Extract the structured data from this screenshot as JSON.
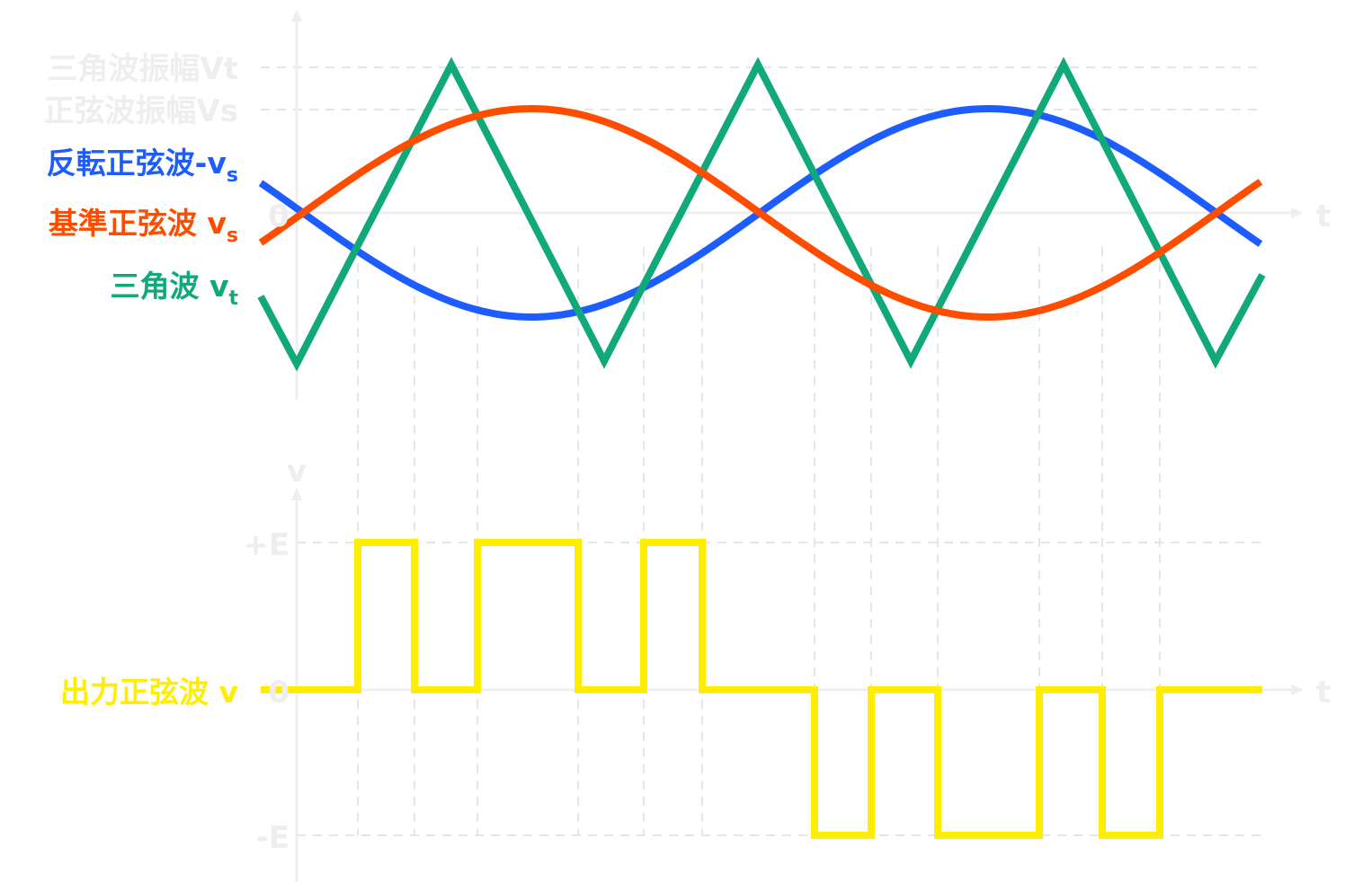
{
  "top_plot": {
    "level_labels": {
      "triangle_amplitude": "三角波振幅Vt",
      "sine_amplitude": "正弦波振幅Vs",
      "zero": "0"
    },
    "time_label": "t",
    "legend": {
      "inverted_sine": {
        "text": "反転正弦波-v",
        "sub": "s",
        "color": "#1d5cff"
      },
      "reference_sine": {
        "text": "基準正弦波 v",
        "sub": "s",
        "color": "#ff4d00"
      },
      "triangle": {
        "text": "三角波 v",
        "sub": "t",
        "color": "#12a97a"
      }
    }
  },
  "bottom_plot": {
    "axis_label": "v",
    "level_labels": {
      "plus_e": "+E",
      "zero": "0",
      "minus_e": "-E"
    },
    "time_label": "t",
    "legend": {
      "output": {
        "text": "出力正弦波 v",
        "color": "#ffee00"
      }
    }
  },
  "colors": {
    "axis": "#efefef",
    "grid": "#e6e6e6",
    "faint_text": "#eeeeee"
  },
  "chart_data": [
    {
      "type": "line",
      "title": "",
      "xlabel": "t",
      "ylabel": "",
      "x_range_cycles": [
        -0.25,
        2.0
      ],
      "series": [
        {
          "name": "基準正弦波 vs",
          "function": "sine",
          "amplitude_ratio": 0.69,
          "cycles": 2.2,
          "phase_deg": 0,
          "color": "#ff4d00"
        },
        {
          "name": "反転正弦波-vs",
          "function": "inverted_sine",
          "amplitude_ratio": 0.69,
          "cycles": 2.2,
          "phase_deg": 0,
          "color": "#1d5cff"
        },
        {
          "name": "三角波 vt",
          "function": "triangle",
          "amplitude_ratio": 1.0,
          "peaks": [
            [
              0.33,
              -1
            ],
            [
              0.67,
              1
            ],
            [
              1.0,
              -1
            ],
            [
              1.34,
              1
            ],
            [
              1.68,
              -1
            ],
            [
              2.02,
              1
            ],
            [
              2.36,
              -1
            ]
          ],
          "color": "#12a97a"
        }
      ]
    },
    {
      "type": "line",
      "title": "",
      "xlabel": "t",
      "ylabel": "v",
      "levels": [
        1,
        0,
        -1
      ],
      "series": [
        {
          "name": "出力正弦波 v",
          "color": "#ffee00",
          "steps": [
            [
              0,
              0
            ],
            [
              1,
              1
            ],
            [
              2,
              0
            ],
            [
              3,
              1
            ],
            [
              4,
              0
            ],
            [
              5,
              1
            ],
            [
              6,
              0
            ],
            [
              7,
              -1
            ],
            [
              8,
              0
            ],
            [
              9,
              -1
            ],
            [
              10,
              0
            ],
            [
              11,
              -1
            ],
            [
              12,
              0
            ]
          ]
        }
      ]
    }
  ]
}
